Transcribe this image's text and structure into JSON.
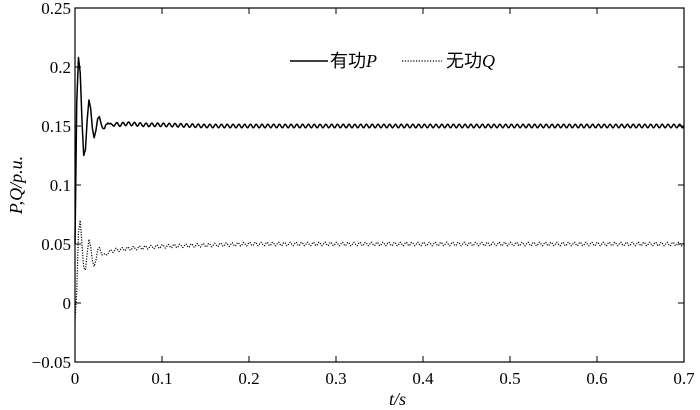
{
  "chart_data": {
    "type": "line",
    "xlabel": "t/s",
    "ylabel": "P,Q/p.u.",
    "xlim": [
      0,
      0.7
    ],
    "ylim": [
      -0.05,
      0.25
    ],
    "xticks": [
      0,
      0.1,
      0.2,
      0.3,
      0.4,
      0.5,
      0.6,
      0.7
    ],
    "xtick_labels": [
      "0",
      "0.1",
      "0.2",
      "0.3",
      "0.4",
      "0.5",
      "0.6",
      "0.7"
    ],
    "yticks": [
      -0.05,
      0,
      0.05,
      0.1,
      0.15,
      0.2,
      0.25
    ],
    "ytick_labels": [
      "−0.05",
      "0",
      "0.05",
      "0.1",
      "0.15",
      "0.2",
      "0.25"
    ],
    "grid": false,
    "legend_position": "top-right",
    "series": [
      {
        "name": "有功P",
        "legend_label": "有功",
        "legend_symbol": "P",
        "style": "solid",
        "color": "#000000",
        "x": [
          0,
          0.002,
          0.004,
          0.006,
          0.008,
          0.01,
          0.012,
          0.014,
          0.016,
          0.018,
          0.02,
          0.022,
          0.024,
          0.026,
          0.028,
          0.03,
          0.034,
          0.038,
          0.042,
          0.046,
          0.05,
          0.06,
          0.08,
          0.1,
          0.15,
          0.2,
          0.3,
          0.4,
          0.5,
          0.6,
          0.7
        ],
        "y": [
          0.05,
          0.17,
          0.208,
          0.195,
          0.155,
          0.125,
          0.13,
          0.155,
          0.172,
          0.165,
          0.148,
          0.14,
          0.146,
          0.156,
          0.158,
          0.152,
          0.147,
          0.154,
          0.15,
          0.152,
          0.151,
          0.152,
          0.151,
          0.151,
          0.15,
          0.15,
          0.15,
          0.15,
          0.15,
          0.15,
          0.15
        ],
        "ripple": 0.0015
      },
      {
        "name": "无功Q",
        "legend_label": "无功",
        "legend_symbol": "Q",
        "style": "dotted",
        "color": "#000000",
        "x": [
          0,
          0.002,
          0.004,
          0.006,
          0.008,
          0.01,
          0.012,
          0.014,
          0.016,
          0.018,
          0.02,
          0.022,
          0.024,
          0.026,
          0.028,
          0.03,
          0.034,
          0.038,
          0.042,
          0.046,
          0.05,
          0.06,
          0.08,
          0.1,
          0.15,
          0.2,
          0.3,
          0.4,
          0.5,
          0.6,
          0.7
        ],
        "y": [
          -0.015,
          0.01,
          0.06,
          0.07,
          0.05,
          0.03,
          0.028,
          0.042,
          0.054,
          0.048,
          0.036,
          0.031,
          0.036,
          0.045,
          0.047,
          0.043,
          0.04,
          0.043,
          0.044,
          0.045,
          0.045,
          0.046,
          0.047,
          0.048,
          0.049,
          0.05,
          0.05,
          0.05,
          0.05,
          0.05,
          0.05
        ],
        "ripple": 0.0015
      }
    ]
  }
}
